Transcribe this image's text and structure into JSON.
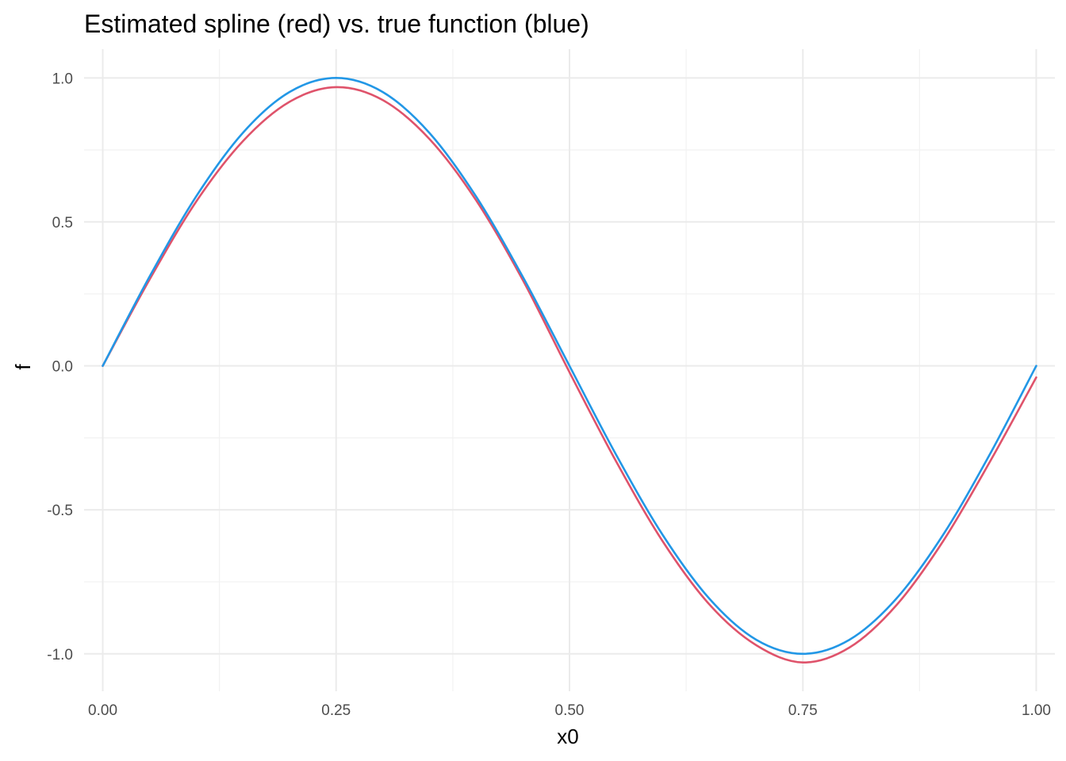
{
  "chart_data": {
    "type": "line",
    "title": "Estimated spline (red) vs. true function (blue)",
    "xlabel": "x0",
    "ylabel": "f",
    "xlim": [
      -0.02,
      1.02
    ],
    "ylim": [
      -1.13,
      1.1
    ],
    "x_ticks": [
      0,
      0.25,
      0.5,
      0.75,
      1.0
    ],
    "x_tick_labels": [
      "0.00",
      "0.25",
      "0.50",
      "0.75",
      "1.00"
    ],
    "y_ticks": [
      -1.0,
      -0.5,
      0.0,
      0.5,
      1.0
    ],
    "y_tick_labels": [
      "-1.0",
      "-0.5",
      "0.0",
      "0.5",
      "1.0"
    ],
    "x_minor": [
      0.125,
      0.375,
      0.625,
      0.875
    ],
    "y_minor": [
      -0.75,
      -0.25,
      0.25,
      0.75
    ],
    "grid": true,
    "legend": "none",
    "series": [
      {
        "color": "#DF536B",
        "x": [
          0,
          0.05,
          0.1,
          0.15,
          0.2,
          0.25,
          0.3,
          0.35,
          0.4,
          0.45,
          0.5,
          0.55,
          0.6,
          0.65,
          0.7,
          0.75,
          0.8,
          0.85,
          0.9,
          0.95,
          1.0
        ],
        "y": [
          0.0,
          0.299,
          0.57,
          0.78,
          0.917,
          0.968,
          0.923,
          0.788,
          0.575,
          0.298,
          -0.022,
          -0.332,
          -0.61,
          -0.829,
          -0.97,
          -1.03,
          -0.978,
          -0.832,
          -0.61,
          -0.335,
          -0.04
        ]
      },
      {
        "color": "#2297E6",
        "x": [
          0,
          0.05,
          0.1,
          0.15,
          0.2,
          0.25,
          0.3,
          0.35,
          0.4,
          0.45,
          0.5,
          0.55,
          0.6,
          0.65,
          0.7,
          0.75,
          0.8,
          0.85,
          0.9,
          0.95,
          1.0
        ],
        "y": [
          0.0,
          0.309,
          0.588,
          0.809,
          0.951,
          1.0,
          0.951,
          0.809,
          0.588,
          0.309,
          0.0,
          -0.309,
          -0.588,
          -0.809,
          -0.951,
          -1.0,
          -0.951,
          -0.809,
          -0.588,
          -0.309,
          0.0
        ]
      }
    ]
  }
}
